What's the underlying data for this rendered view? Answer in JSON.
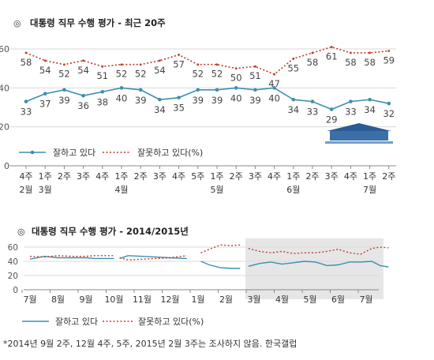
{
  "chart_data": [
    {
      "type": "line",
      "title": "대통령 직무 수행 평가 - 최근 20주",
      "title_marker": "◎",
      "unit_label": "(%)",
      "ylim": [
        0,
        60
      ],
      "yticks": [
        "0",
        "20",
        "40",
        "60"
      ],
      "grid": true,
      "x_labels_top": [
        "4주",
        "1주",
        "2주",
        "3주",
        "4주",
        "1주",
        "2주",
        "3주",
        "4주",
        "5주",
        "1주",
        "2주",
        "3주",
        "4주",
        "1주",
        "2주",
        "3주",
        "4주",
        "1주",
        "2주"
      ],
      "x_labels_month": [
        "2월",
        "3월",
        "",
        "",
        "",
        "4월",
        "",
        "",
        "",
        "",
        "5월",
        "",
        "",
        "",
        "6월",
        "",
        "",
        "",
        "7월",
        ""
      ],
      "series": [
        {
          "name": "잘하고 있다",
          "color": "#3d8fb0",
          "style": "solid-marker",
          "values": [
            33,
            37,
            39,
            36,
            38,
            40,
            39,
            34,
            35,
            39,
            39,
            40,
            39,
            40,
            34,
            33,
            29,
            33,
            34,
            32
          ]
        },
        {
          "name": "잘못하고 있다",
          "color": "#c0392b",
          "style": "dotted",
          "values": [
            58,
            54,
            52,
            54,
            51,
            52,
            52,
            54,
            57,
            52,
            52,
            50,
            51,
            47,
            55,
            58,
            61,
            58,
            58,
            59
          ]
        }
      ],
      "legend": [
        "잘하고 있다",
        "잘못하고 있다(%)"
      ],
      "legend_position": "bottom-left"
    },
    {
      "type": "line",
      "title": "대통령 직무 수행 평가 - 2014/2015년",
      "title_marker": "◎",
      "ylim": [
        0,
        60
      ],
      "yticks": [
        "0",
        "20",
        "40",
        "60"
      ],
      "grid": true,
      "x_labels": [
        "7월",
        "8월",
        "9월",
        "10월",
        "11월",
        "12월",
        "1월",
        "2월",
        "3월",
        "4월",
        "5월",
        "6월",
        "7월"
      ],
      "highlight_from_month_index": 7.8,
      "series": [
        {
          "name": "잘하고 있다",
          "color": "#3d8fb0",
          "segments": [
            {
              "x": [
                0.0,
                0.5,
                1.0,
                1.5,
                2.0,
                2.3,
                2.6,
                3.0
              ],
              "values": [
                43,
                47,
                45,
                45,
                45,
                44,
                44,
                44
              ]
            },
            {
              "x": [
                3.2,
                3.5,
                4.0,
                4.5,
                5.0,
                5.6
              ],
              "values": [
                44,
                48,
                47,
                46,
                45,
                44
              ]
            },
            {
              "x": [
                6.1,
                6.4,
                6.8,
                7.2,
                7.5
              ],
              "values": [
                40,
                35,
                31,
                30,
                30
              ]
            },
            {
              "x": [
                7.8,
                8.2,
                8.6,
                9.0,
                9.4,
                9.8,
                10.2,
                10.6,
                11.0,
                11.4,
                11.8,
                12.2,
                12.5,
                12.8
              ],
              "values": [
                33,
                37,
                39,
                36,
                38,
                40,
                39,
                34,
                35,
                39,
                39,
                40,
                34,
                32
              ]
            }
          ]
        },
        {
          "name": "잘못하고 있다",
          "color": "#c0392b",
          "segments": [
            {
              "x": [
                0.0,
                0.5,
                1.0,
                1.5,
                2.0,
                2.3,
                2.6,
                3.0
              ],
              "values": [
                47,
                46,
                48,
                47,
                47,
                48,
                48,
                48
              ]
            },
            {
              "x": [
                3.2,
                3.5,
                4.0,
                4.5,
                5.0,
                5.6
              ],
              "values": [
                45,
                42,
                43,
                44,
                45,
                48
              ]
            },
            {
              "x": [
                6.1,
                6.4,
                6.8,
                7.2,
                7.5
              ],
              "values": [
                52,
                57,
                63,
                62,
                63
              ]
            },
            {
              "x": [
                7.8,
                8.2,
                8.6,
                9.0,
                9.4,
                9.8,
                10.2,
                10.6,
                11.0,
                11.4,
                11.8,
                12.2,
                12.5,
                12.8
              ],
              "values": [
                58,
                54,
                52,
                54,
                51,
                52,
                52,
                54,
                57,
                52,
                50,
                58,
                60,
                59
              ]
            }
          ]
        }
      ],
      "legend": [
        "잘하고 있다",
        "잘못하고 있다(%)"
      ],
      "legend_position": "bottom-left"
    }
  ],
  "footnote": "*2014년 9월 2주, 12월 4주, 5주, 2015년 2월 3주는 조사하지 않음. 한국갤럽"
}
